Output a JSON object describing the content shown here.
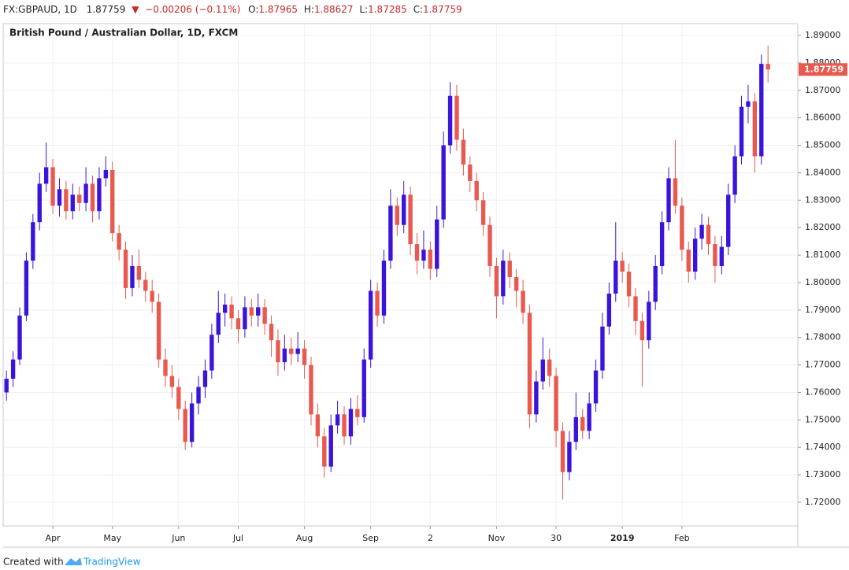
{
  "chart_data": {
    "type": "candlestick",
    "header": {
      "symbol": "FX:GBPAUD, 1D",
      "arrow": "▼",
      "change": "−0.00206 (−0.11%)",
      "open_label": "O:",
      "high_label": "H:",
      "low_label": "L:",
      "close_label": "C:"
    },
    "title": "British Pound / Australian Dollar, 1D, FXCM",
    "footer": {
      "text": "Created with",
      "brand": "TradingView"
    },
    "up_color": "#3b14dc",
    "down_color": "#e8594f",
    "grid": true,
    "xlim": [
      -0.5,
      119.5
    ],
    "xticks": [
      {
        "value": 7,
        "label": "Apr"
      },
      {
        "value": 16,
        "label": "May"
      },
      {
        "value": 26,
        "label": "Jun"
      },
      {
        "value": 35,
        "label": "Jul"
      },
      {
        "value": 45,
        "label": "Aug"
      },
      {
        "value": 55,
        "label": "Sep"
      },
      {
        "value": 64,
        "label": "2"
      },
      {
        "value": 74,
        "label": "Nov"
      },
      {
        "value": 83,
        "label": "30"
      },
      {
        "value": 93,
        "label": "2019",
        "bold": true
      },
      {
        "value": 102,
        "label": "Feb"
      }
    ],
    "ylim": [
      1.7114,
      1.8943
    ],
    "yticks": [
      {
        "value": 1.72,
        "label": "1.72000"
      },
      {
        "value": 1.73,
        "label": "1.73000"
      },
      {
        "value": 1.74,
        "label": "1.74000"
      },
      {
        "value": 1.75,
        "label": "1.75000"
      },
      {
        "value": 1.76,
        "label": "1.76000"
      },
      {
        "value": 1.77,
        "label": "1.77000"
      },
      {
        "value": 1.78,
        "label": "1.78000"
      },
      {
        "value": 1.79,
        "label": "1.79000"
      },
      {
        "value": 1.8,
        "label": "1.80000"
      },
      {
        "value": 1.81,
        "label": "1.81000"
      },
      {
        "value": 1.82,
        "label": "1.82000"
      },
      {
        "value": 1.83,
        "label": "1.83000"
      },
      {
        "value": 1.84,
        "label": "1.84000"
      },
      {
        "value": 1.85,
        "label": "1.85000"
      },
      {
        "value": 1.86,
        "label": "1.86000"
      },
      {
        "value": 1.87,
        "label": "1.87000"
      },
      {
        "value": 1.88,
        "label": "1.88000"
      },
      {
        "value": 1.89,
        "label": "1.89000"
      }
    ],
    "ohlc": [
      [
        1.76,
        1.768,
        1.757,
        1.765
      ],
      [
        1.765,
        1.775,
        1.762,
        1.772
      ],
      [
        1.772,
        1.791,
        1.77,
        1.788
      ],
      [
        1.788,
        1.811,
        1.786,
        1.808
      ],
      [
        1.808,
        1.825,
        1.805,
        1.822
      ],
      [
        1.822,
        1.84,
        1.819,
        1.836
      ],
      [
        1.836,
        1.851,
        1.833,
        1.842
      ],
      [
        1.842,
        1.845,
        1.825,
        1.828
      ],
      [
        1.828,
        1.838,
        1.824,
        1.834
      ],
      [
        1.834,
        1.837,
        1.823,
        1.826
      ],
      [
        1.826,
        1.836,
        1.823,
        1.832
      ],
      [
        1.832,
        1.835,
        1.826,
        1.829
      ],
      [
        1.829,
        1.842,
        1.826,
        1.836
      ],
      [
        1.836,
        1.839,
        1.822,
        1.826
      ],
      [
        1.826,
        1.842,
        1.823,
        1.838
      ],
      [
        1.838,
        1.846,
        1.835,
        1.841
      ],
      [
        1.841,
        1.844,
        1.815,
        1.818
      ],
      [
        1.818,
        1.821,
        1.808,
        1.812
      ],
      [
        1.812,
        1.815,
        1.794,
        1.798
      ],
      [
        1.798,
        1.81,
        1.795,
        1.806
      ],
      [
        1.806,
        1.812,
        1.798,
        1.801
      ],
      [
        1.801,
        1.804,
        1.793,
        1.797
      ],
      [
        1.797,
        1.801,
        1.789,
        1.793
      ],
      [
        1.793,
        1.796,
        1.769,
        1.772
      ],
      [
        1.772,
        1.776,
        1.762,
        1.766
      ],
      [
        1.766,
        1.77,
        1.758,
        1.762
      ],
      [
        1.762,
        1.765,
        1.75,
        1.754
      ],
      [
        1.754,
        1.757,
        1.739,
        1.742
      ],
      [
        1.742,
        1.76,
        1.74,
        1.756
      ],
      [
        1.756,
        1.766,
        1.752,
        1.762
      ],
      [
        1.762,
        1.772,
        1.758,
        1.768
      ],
      [
        1.768,
        1.785,
        1.765,
        1.781
      ],
      [
        1.781,
        1.797,
        1.778,
        1.789
      ],
      [
        1.789,
        1.796,
        1.784,
        1.792
      ],
      [
        1.792,
        1.795,
        1.783,
        1.787
      ],
      [
        1.787,
        1.79,
        1.778,
        1.783
      ],
      [
        1.783,
        1.795,
        1.78,
        1.791
      ],
      [
        1.791,
        1.794,
        1.784,
        1.788
      ],
      [
        1.788,
        1.796,
        1.784,
        1.791
      ],
      [
        1.791,
        1.794,
        1.781,
        1.785
      ],
      [
        1.785,
        1.788,
        1.773,
        1.779
      ],
      [
        1.779,
        1.783,
        1.766,
        1.771
      ],
      [
        1.771,
        1.781,
        1.768,
        1.776
      ],
      [
        1.776,
        1.78,
        1.77,
        1.774
      ],
      [
        1.774,
        1.782,
        1.771,
        1.776
      ],
      [
        1.776,
        1.779,
        1.765,
        1.77
      ],
      [
        1.77,
        1.773,
        1.748,
        1.752
      ],
      [
        1.752,
        1.756,
        1.74,
        1.744
      ],
      [
        1.744,
        1.747,
        1.729,
        1.733
      ],
      [
        1.733,
        1.752,
        1.731,
        1.748
      ],
      [
        1.748,
        1.757,
        1.745,
        1.752
      ],
      [
        1.752,
        1.755,
        1.741,
        1.744
      ],
      [
        1.744,
        1.758,
        1.741,
        1.754
      ],
      [
        1.754,
        1.759,
        1.748,
        1.751
      ],
      [
        1.751,
        1.776,
        1.749,
        1.772
      ],
      [
        1.772,
        1.801,
        1.769,
        1.797
      ],
      [
        1.797,
        1.8,
        1.784,
        1.788
      ],
      [
        1.788,
        1.812,
        1.785,
        1.808
      ],
      [
        1.808,
        1.834,
        1.805,
        1.828
      ],
      [
        1.828,
        1.831,
        1.817,
        1.821
      ],
      [
        1.821,
        1.837,
        1.818,
        1.832
      ],
      [
        1.832,
        1.835,
        1.81,
        1.814
      ],
      [
        1.814,
        1.818,
        1.803,
        1.808
      ],
      [
        1.808,
        1.819,
        1.805,
        1.812
      ],
      [
        1.812,
        1.815,
        1.801,
        1.805
      ],
      [
        1.805,
        1.828,
        1.802,
        1.823
      ],
      [
        1.823,
        1.855,
        1.82,
        1.85
      ],
      [
        1.85,
        1.873,
        1.847,
        1.868
      ],
      [
        1.868,
        1.872,
        1.848,
        1.852
      ],
      [
        1.852,
        1.856,
        1.839,
        1.843
      ],
      [
        1.843,
        1.846,
        1.833,
        1.837
      ],
      [
        1.837,
        1.84,
        1.826,
        1.83
      ],
      [
        1.83,
        1.833,
        1.817,
        1.821
      ],
      [
        1.821,
        1.824,
        1.802,
        1.806
      ],
      [
        1.806,
        1.809,
        1.787,
        1.795
      ],
      [
        1.795,
        1.812,
        1.792,
        1.808
      ],
      [
        1.808,
        1.811,
        1.798,
        1.802
      ],
      [
        1.802,
        1.805,
        1.791,
        1.797
      ],
      [
        1.797,
        1.801,
        1.785,
        1.789
      ],
      [
        1.789,
        1.792,
        1.747,
        1.752
      ],
      [
        1.752,
        1.768,
        1.749,
        1.764
      ],
      [
        1.764,
        1.78,
        1.761,
        1.772
      ],
      [
        1.772,
        1.776,
        1.762,
        1.766
      ],
      [
        1.766,
        1.769,
        1.74,
        1.746
      ],
      [
        1.746,
        1.749,
        1.721,
        1.731
      ],
      [
        1.731,
        1.746,
        1.728,
        1.742
      ],
      [
        1.742,
        1.76,
        1.739,
        1.751
      ],
      [
        1.751,
        1.754,
        1.743,
        1.746
      ],
      [
        1.746,
        1.76,
        1.743,
        1.756
      ],
      [
        1.756,
        1.772,
        1.753,
        1.768
      ],
      [
        1.768,
        1.789,
        1.765,
        1.784
      ],
      [
        1.784,
        1.8,
        1.781,
        1.796
      ],
      [
        1.796,
        1.822,
        1.793,
        1.808
      ],
      [
        1.808,
        1.811,
        1.8,
        1.804
      ],
      [
        1.804,
        1.807,
        1.791,
        1.795
      ],
      [
        1.795,
        1.798,
        1.781,
        1.786
      ],
      [
        1.786,
        1.789,
        1.762,
        1.779
      ],
      [
        1.779,
        1.797,
        1.776,
        1.793
      ],
      [
        1.793,
        1.81,
        1.79,
        1.806
      ],
      [
        1.806,
        1.826,
        1.803,
        1.822
      ],
      [
        1.822,
        1.842,
        1.819,
        1.838
      ],
      [
        1.838,
        1.852,
        1.825,
        1.828
      ],
      [
        1.828,
        1.831,
        1.808,
        1.812
      ],
      [
        1.812,
        1.815,
        1.8,
        1.804
      ],
      [
        1.804,
        1.82,
        1.801,
        1.816
      ],
      [
        1.816,
        1.825,
        1.812,
        1.821
      ],
      [
        1.821,
        1.824,
        1.81,
        1.814
      ],
      [
        1.814,
        1.817,
        1.8,
        1.806
      ],
      [
        1.806,
        1.817,
        1.803,
        1.813
      ],
      [
        1.813,
        1.836,
        1.81,
        1.832
      ],
      [
        1.832,
        1.85,
        1.829,
        1.846
      ],
      [
        1.846,
        1.868,
        1.843,
        1.864
      ],
      [
        1.864,
        1.872,
        1.858,
        1.866
      ],
      [
        1.866,
        1.869,
        1.84,
        1.846
      ],
      [
        1.846,
        1.883,
        1.843,
        1.87965
      ],
      [
        1.87965,
        1.88627,
        1.87285,
        1.87759
      ]
    ]
  }
}
